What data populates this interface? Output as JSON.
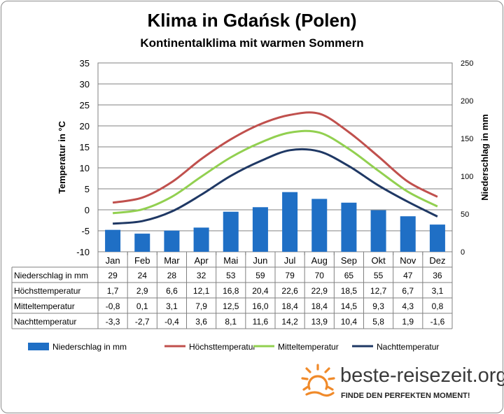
{
  "page": {
    "title": "Klima in Gdańsk (Polen)",
    "subtitle": "Kontinentalklima mit warmen Sommern"
  },
  "brand": {
    "name": "beste-reisezeit.org",
    "slogan": "FINDE DEN PERFEKTEN MOMENT!",
    "icon": "sun-icon",
    "color": "#f08a2a"
  },
  "chart_data": {
    "type": "bar-line-combo",
    "title": "Klima in Gdańsk (Polen)",
    "subtitle": "Kontinentalklima mit warmen Sommern",
    "categories": [
      "Jan",
      "Feb",
      "Mar",
      "Apr",
      "Mai",
      "Jun",
      "Jul",
      "Aug",
      "Sep",
      "Okt",
      "Nov",
      "Dez"
    ],
    "y_left": {
      "label": "Temperatur in °C",
      "min": -10,
      "max": 35,
      "ticks": [
        -10,
        -5,
        0,
        5,
        10,
        15,
        20,
        25,
        30,
        35
      ]
    },
    "y_right": {
      "label": "Niederschlag in mm",
      "min": 0,
      "max": 250,
      "ticks": [
        0,
        50,
        100,
        150,
        200,
        250
      ]
    },
    "grid": true,
    "legend_position": "bottom",
    "series": [
      {
        "name": "Niederschlag in mm",
        "kind": "bar",
        "axis": "right",
        "color": "#1f6fc5",
        "values": [
          29,
          24,
          28,
          32,
          53,
          59,
          79,
          70,
          65,
          55,
          47,
          36
        ],
        "labels": [
          "29",
          "24",
          "28",
          "32",
          "53",
          "59",
          "79",
          "70",
          "65",
          "55",
          "47",
          "36"
        ]
      },
      {
        "name": "Höchsttemperatur",
        "kind": "line",
        "axis": "left",
        "color": "#c0504d",
        "values": [
          1.7,
          2.9,
          6.6,
          12.1,
          16.8,
          20.4,
          22.6,
          22.9,
          18.5,
          12.7,
          6.7,
          3.1
        ],
        "labels": [
          "1,7",
          "2,9",
          "6,6",
          "12,1",
          "16,8",
          "20,4",
          "22,6",
          "22,9",
          "18,5",
          "12,7",
          "6,7",
          "3,1"
        ]
      },
      {
        "name": "Mitteltemperatur",
        "kind": "line",
        "axis": "left",
        "color": "#92d050",
        "values": [
          -0.8,
          0.1,
          3.1,
          7.9,
          12.5,
          16.0,
          18.4,
          18.4,
          14.5,
          9.3,
          4.3,
          0.8
        ],
        "labels": [
          "-0,8",
          "0,1",
          "3,1",
          "7,9",
          "12,5",
          "16,0",
          "18,4",
          "18,4",
          "14,5",
          "9,3",
          "4,3",
          "0,8"
        ]
      },
      {
        "name": "Nachttemperatur",
        "kind": "line",
        "axis": "left",
        "color": "#1f3864",
        "values": [
          -3.3,
          -2.7,
          -0.4,
          3.6,
          8.1,
          11.6,
          14.2,
          13.9,
          10.4,
          5.8,
          1.9,
          -1.6
        ],
        "labels": [
          "-3,3",
          "-2,7",
          "-0,4",
          "3,6",
          "8,1",
          "11,6",
          "14,2",
          "13,9",
          "10,4",
          "5,8",
          "1,9",
          "-1,6"
        ]
      }
    ]
  }
}
